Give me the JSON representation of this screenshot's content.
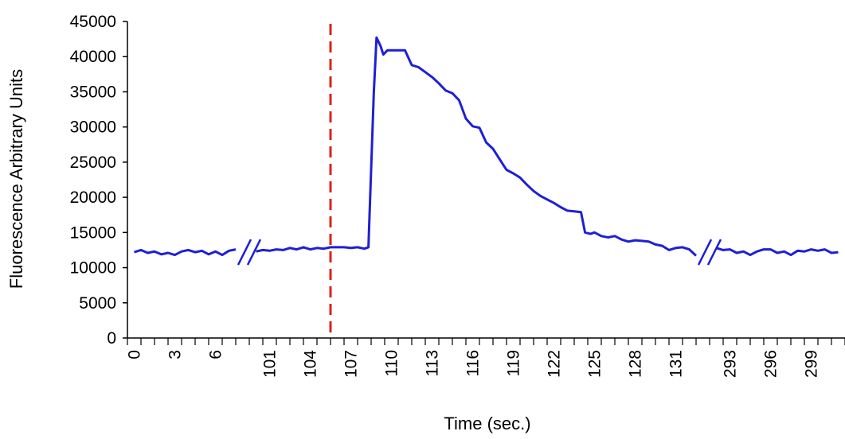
{
  "chart_data": {
    "type": "line",
    "title": "",
    "xlabel": "Time (sec.)",
    "ylabel": "Fluorescence Arbitrary Units",
    "ylim": [
      0,
      45000
    ],
    "yticks": [
      0,
      5000,
      10000,
      15000,
      20000,
      25000,
      30000,
      35000,
      40000,
      45000
    ],
    "grid": false,
    "legend": "none",
    "x_categories": [
      "0",
      "1",
      "2",
      "3",
      "4",
      "5",
      "6",
      "7",
      "8",
      "100",
      "101",
      "102",
      "103",
      "104",
      "105",
      "106",
      "107",
      "108",
      "109",
      "110",
      "111",
      "112",
      "113",
      "114",
      "115",
      "116",
      "117",
      "118",
      "119",
      "120",
      "121",
      "122",
      "123",
      "124",
      "125",
      "126",
      "127",
      "128",
      "129",
      "130",
      "131",
      "132",
      "133",
      "292",
      "293",
      "294",
      "295",
      "296",
      "297",
      "298",
      "299",
      "300",
      "301"
    ],
    "x_tick_labels": [
      "0",
      "3",
      "6",
      "101",
      "104",
      "107",
      "110",
      "113",
      "116",
      "119",
      "122",
      "125",
      "128",
      "131",
      "293",
      "296",
      "299"
    ],
    "axis_breaks": [
      "8|100",
      "133|292"
    ],
    "event_marker": {
      "x": 105.5,
      "style": "dashed",
      "color": "#e0201b"
    },
    "series": [
      {
        "color": "#1f1fd6",
        "points": [
          [
            0,
            12200
          ],
          [
            0.5,
            12500
          ],
          [
            1,
            12100
          ],
          [
            1.5,
            12300
          ],
          [
            2,
            11900
          ],
          [
            2.5,
            12100
          ],
          [
            3,
            11800
          ],
          [
            3.5,
            12300
          ],
          [
            4,
            12500
          ],
          [
            4.5,
            12200
          ],
          [
            5,
            12400
          ],
          [
            5.5,
            11900
          ],
          [
            6,
            12300
          ],
          [
            6.5,
            11800
          ],
          [
            7,
            12400
          ],
          [
            7.5,
            12600
          ],
          [
            100,
            12300
          ],
          [
            100.5,
            12500
          ],
          [
            101,
            12400
          ],
          [
            101.5,
            12600
          ],
          [
            102,
            12500
          ],
          [
            102.5,
            12800
          ],
          [
            103,
            12600
          ],
          [
            103.5,
            12900
          ],
          [
            104,
            12600
          ],
          [
            104.5,
            12800
          ],
          [
            105,
            12700
          ],
          [
            105.5,
            12900
          ],
          [
            106,
            12900
          ],
          [
            106.5,
            12900
          ],
          [
            107,
            12800
          ],
          [
            107.5,
            12900
          ],
          [
            108,
            12700
          ],
          [
            108.3,
            12900
          ],
          [
            108.7,
            35000
          ],
          [
            108.9,
            42700
          ],
          [
            109.2,
            41500
          ],
          [
            109.4,
            40300
          ],
          [
            109.7,
            40900
          ],
          [
            110.5,
            40900
          ],
          [
            111,
            40900
          ],
          [
            111.5,
            38800
          ],
          [
            112,
            38500
          ],
          [
            112.5,
            37800
          ],
          [
            113,
            37100
          ],
          [
            113.5,
            36200
          ],
          [
            114,
            35200
          ],
          [
            114.5,
            34800
          ],
          [
            115,
            33800
          ],
          [
            115.5,
            31200
          ],
          [
            116,
            30100
          ],
          [
            116.5,
            29900
          ],
          [
            117,
            27800
          ],
          [
            117.5,
            26900
          ],
          [
            118,
            25400
          ],
          [
            118.5,
            23900
          ],
          [
            119,
            23400
          ],
          [
            119.5,
            22800
          ],
          [
            120,
            21800
          ],
          [
            120.5,
            20900
          ],
          [
            121,
            20200
          ],
          [
            121.5,
            19700
          ],
          [
            122,
            19200
          ],
          [
            122.5,
            18600
          ],
          [
            123,
            18100
          ],
          [
            123.5,
            18000
          ],
          [
            124,
            17900
          ],
          [
            124.3,
            15000
          ],
          [
            124.7,
            14800
          ],
          [
            125,
            15000
          ],
          [
            125.5,
            14500
          ],
          [
            126,
            14300
          ],
          [
            126.5,
            14500
          ],
          [
            127,
            14000
          ],
          [
            127.5,
            13700
          ],
          [
            128,
            13900
          ],
          [
            128.5,
            13800
          ],
          [
            129,
            13700
          ],
          [
            129.5,
            13300
          ],
          [
            130,
            13100
          ],
          [
            130.5,
            12500
          ],
          [
            131,
            12800
          ],
          [
            131.5,
            12900
          ],
          [
            132,
            12600
          ],
          [
            132.5,
            11700
          ],
          [
            292,
            12800
          ],
          [
            292.5,
            12500
          ],
          [
            293,
            12600
          ],
          [
            293.5,
            12100
          ],
          [
            294,
            12300
          ],
          [
            294.5,
            11800
          ],
          [
            295,
            12300
          ],
          [
            295.5,
            12600
          ],
          [
            296,
            12600
          ],
          [
            296.5,
            12100
          ],
          [
            297,
            12300
          ],
          [
            297.5,
            11800
          ],
          [
            298,
            12400
          ],
          [
            298.5,
            12300
          ],
          [
            299,
            12600
          ],
          [
            299.5,
            12400
          ],
          [
            300,
            12600
          ],
          [
            300.5,
            12100
          ],
          [
            301,
            12200
          ]
        ]
      }
    ]
  }
}
